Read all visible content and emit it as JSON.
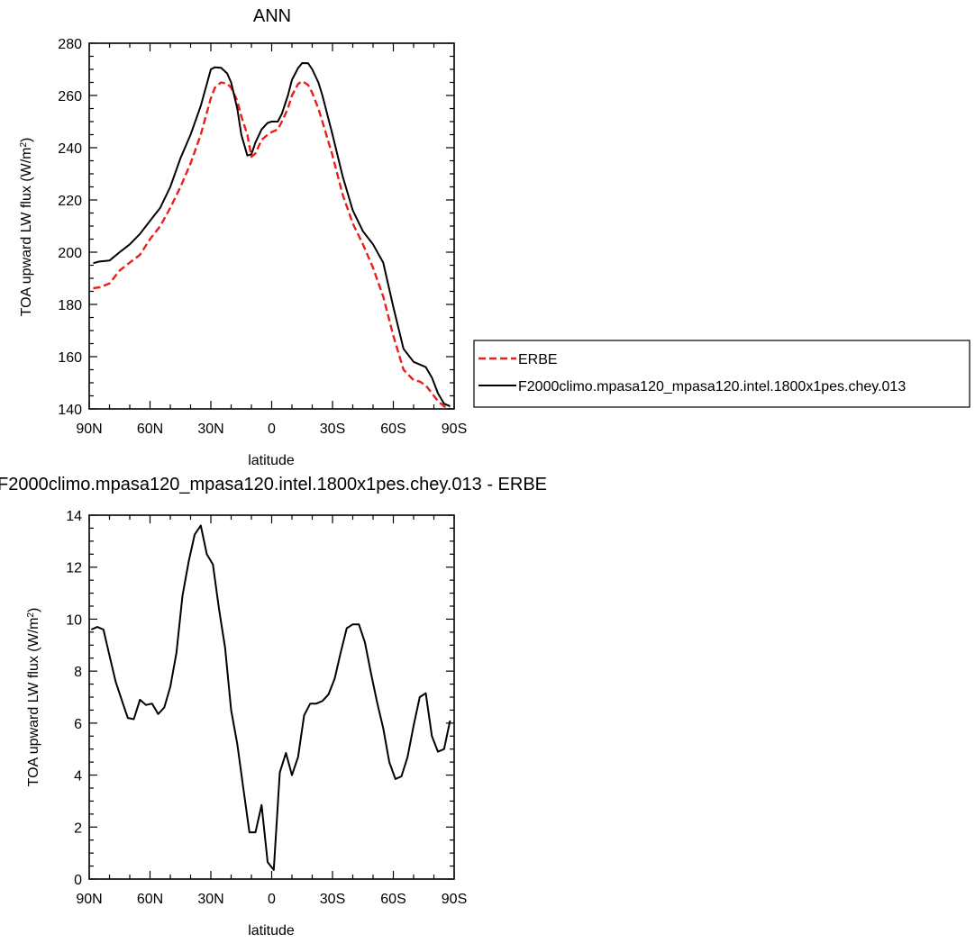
{
  "chart_data": [
    {
      "type": "line",
      "title": "ANN",
      "xlabel": "latitude",
      "ylabel": "TOA upward LW flux (W/m²)",
      "x_ticks": [
        {
          "value": 90,
          "label": "90N"
        },
        {
          "value": 60,
          "label": "60N"
        },
        {
          "value": 30,
          "label": "30N"
        },
        {
          "value": 0,
          "label": "0"
        },
        {
          "value": -30,
          "label": "30S"
        },
        {
          "value": -60,
          "label": "60S"
        },
        {
          "value": -90,
          "label": "90S"
        }
      ],
      "xlim": [
        90,
        -90
      ],
      "ylim": [
        140,
        280
      ],
      "y_ticks": [
        140,
        160,
        180,
        200,
        220,
        240,
        260,
        280
      ],
      "legend_placement": "right",
      "x": [
        88,
        85,
        80,
        75,
        70,
        65,
        60,
        55,
        50,
        45,
        40,
        35,
        30,
        28,
        25,
        22,
        20,
        17,
        15,
        12,
        10,
        8,
        5,
        2,
        0,
        -3,
        -5,
        -8,
        -10,
        -13,
        -15,
        -18,
        -20,
        -23,
        -25,
        -30,
        -35,
        -40,
        -45,
        -50,
        -55,
        -60,
        -65,
        -70,
        -73,
        -76,
        -79,
        -82,
        -85,
        -88
      ],
      "series": [
        {
          "name": "ERBE",
          "color": "#e8201c",
          "dash": "dashed",
          "values": [
            186.2,
            186.5,
            188,
            193,
            196,
            199,
            205,
            210,
            217,
            225,
            234,
            245,
            259,
            263,
            265,
            264.6,
            263,
            258,
            252,
            245,
            236.5,
            237.8,
            243,
            245,
            246,
            247,
            250,
            255,
            260,
            264.4,
            265.5,
            264,
            261,
            255,
            250,
            237,
            222,
            211,
            203,
            194,
            183,
            168,
            155,
            151,
            150.5,
            149,
            146,
            143,
            141,
            140
          ]
        },
        {
          "name": "F2000climo.mpasa120_mpasa120.intel.1800x1pes.chey.013",
          "color": "#000000",
          "dash": "solid",
          "values": [
            195.8,
            196.4,
            196.8,
            200,
            203,
            207,
            212,
            217,
            225,
            236,
            245,
            256,
            270,
            270.8,
            270.6,
            268.5,
            265,
            255,
            245,
            237,
            237.5,
            242,
            247,
            249.5,
            250,
            250,
            253,
            260,
            266,
            270.5,
            272.4,
            272.3,
            270,
            265,
            260,
            245,
            229,
            216,
            208,
            203,
            196,
            179,
            163,
            158,
            157,
            156,
            152,
            146,
            142,
            141
          ]
        }
      ]
    },
    {
      "type": "line",
      "title": "F2000climo.mpasa120_mpasa120.intel.1800x1pes.chey.013 - ERBE",
      "xlabel": "latitude",
      "ylabel": "TOA upward LW flux (W/m²)",
      "x_ticks": [
        {
          "value": 90,
          "label": "90N"
        },
        {
          "value": 60,
          "label": "60N"
        },
        {
          "value": 30,
          "label": "30N"
        },
        {
          "value": 0,
          "label": "0"
        },
        {
          "value": -30,
          "label": "30S"
        },
        {
          "value": -60,
          "label": "60S"
        },
        {
          "value": -90,
          "label": "90S"
        }
      ],
      "xlim": [
        90,
        -90
      ],
      "ylim": [
        0,
        14
      ],
      "y_ticks": [
        0,
        2,
        4,
        6,
        8,
        10,
        12,
        14
      ],
      "x": [
        89,
        86,
        83,
        80,
        77,
        74,
        71,
        68,
        65,
        62,
        59,
        56,
        53,
        50,
        47,
        44,
        41,
        38,
        35,
        32,
        29,
        26,
        23,
        20,
        17,
        14,
        11,
        8,
        5,
        2,
        -1,
        -4,
        -7,
        -10,
        -13,
        -16,
        -19,
        -22,
        -25,
        -28,
        -31,
        -34,
        -37,
        -40,
        -43,
        -46,
        -49,
        -52,
        -55,
        -58,
        -61,
        -64,
        -67,
        -70,
        -73,
        -76,
        -79,
        -82,
        -85,
        -88
      ],
      "series": [
        {
          "color": "#000000",
          "values": [
            9.6,
            9.7,
            9.6,
            8.6,
            7.6,
            6.9,
            6.2,
            6.15,
            6.9,
            6.7,
            6.75,
            6.35,
            6.6,
            7.4,
            8.7,
            10.9,
            12.2,
            13.25,
            13.6,
            12.5,
            12.1,
            10.4,
            8.9,
            6.5,
            5.2,
            3.5,
            1.8,
            1.8,
            2.85,
            0.65,
            0.35,
            4.1,
            4.85,
            4.0,
            4.7,
            6.3,
            6.75,
            6.75,
            6.85,
            7.1,
            7.7,
            8.7,
            9.65,
            9.8,
            9.8,
            9.1,
            7.9,
            6.8,
            5.8,
            4.5,
            3.85,
            3.95,
            4.7,
            5.9,
            7.0,
            7.15,
            5.5,
            4.9,
            5.0,
            6.1
          ]
        }
      ]
    }
  ]
}
